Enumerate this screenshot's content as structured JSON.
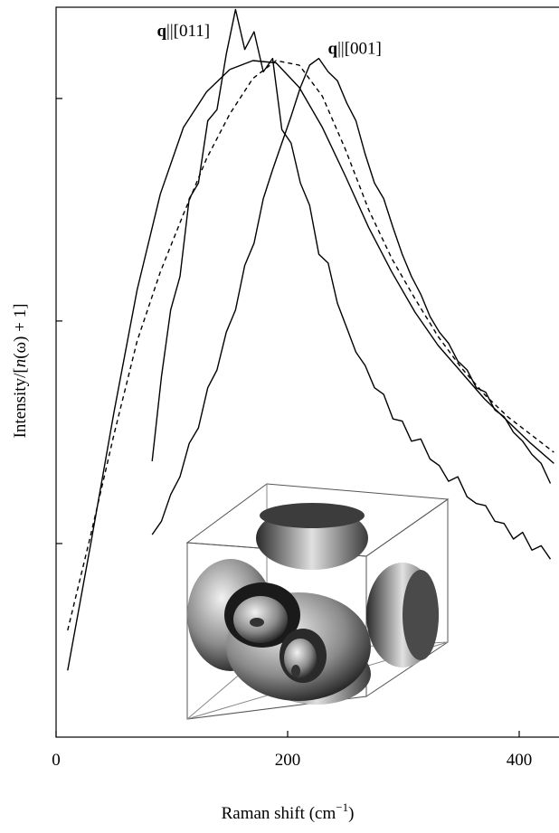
{
  "chart_data": {
    "type": "line",
    "x_label": {
      "text": "Raman shift  (cm",
      "sup": "−1",
      "tail": ")"
    },
    "y_label": {
      "text": "Intensity/[",
      "italic": "n",
      "tail": "(ω) + 1]"
    },
    "annotations": [
      {
        "bold": "q",
        "text": "||[011]",
        "x": 110,
        "y": 3.28
      },
      {
        "bold": "q",
        "text": "||[001]",
        "x": 258,
        "y": 3.2
      }
    ],
    "xlim": [
      0,
      434
    ],
    "ylim": [
      0.13,
      3.41
    ],
    "xticks": [
      0,
      200,
      400
    ],
    "yticks": [
      1,
      2,
      3
    ],
    "series": [
      {
        "color": "#000000",
        "dash": false,
        "x": [
          10,
          30,
          50,
          70,
          90,
          110,
          130,
          150,
          170,
          190,
          210,
          230,
          250,
          270,
          290,
          310,
          330,
          350,
          370,
          390,
          410,
          430
        ],
        "values": [
          0.43,
          1.0,
          1.59,
          2.14,
          2.57,
          2.87,
          3.03,
          3.13,
          3.17,
          3.16,
          3.05,
          2.87,
          2.65,
          2.42,
          2.22,
          2.04,
          1.89,
          1.77,
          1.65,
          1.55,
          1.45,
          1.36
        ]
      },
      {
        "color": "#000000",
        "dash": true,
        "x": [
          10,
          30,
          50,
          70,
          90,
          110,
          130,
          150,
          170,
          190,
          210,
          230,
          250,
          270,
          290,
          310,
          330,
          350,
          370,
          390,
          410,
          430
        ],
        "values": [
          0.61,
          1.04,
          1.49,
          1.91,
          2.22,
          2.48,
          2.73,
          2.93,
          3.09,
          3.17,
          3.15,
          3.01,
          2.77,
          2.5,
          2.28,
          2.1,
          1.93,
          1.79,
          1.67,
          1.57,
          1.49,
          1.41
        ]
      },
      {
        "color": "#000000",
        "dash": false,
        "x": [
          83,
          91,
          99,
          107,
          115,
          123,
          131,
          139,
          147,
          155,
          163,
          171,
          179,
          187,
          195,
          203,
          211,
          219,
          227,
          235,
          243,
          251,
          259,
          267,
          275,
          283,
          291,
          299,
          307,
          315,
          323,
          331,
          339,
          347,
          355,
          363,
          371,
          379,
          387,
          395,
          403,
          411,
          419,
          427
        ],
        "values": [
          1.37,
          1.75,
          2.05,
          2.2,
          2.55,
          2.62,
          2.9,
          2.95,
          3.2,
          3.4,
          3.22,
          3.3,
          3.12,
          3.18,
          2.86,
          2.8,
          2.62,
          2.52,
          2.3,
          2.26,
          2.08,
          1.97,
          1.86,
          1.8,
          1.7,
          1.67,
          1.56,
          1.55,
          1.46,
          1.47,
          1.38,
          1.35,
          1.28,
          1.3,
          1.21,
          1.18,
          1.17,
          1.1,
          1.09,
          1.02,
          1.05,
          0.97,
          0.99,
          0.93
        ]
      },
      {
        "color": "#000000",
        "dash": false,
        "x": [
          83,
          91,
          99,
          107,
          115,
          123,
          131,
          139,
          147,
          155,
          163,
          171,
          179,
          187,
          195,
          203,
          211,
          219,
          227,
          235,
          243,
          251,
          259,
          267,
          275,
          283,
          291,
          299,
          307,
          315,
          323,
          331,
          339,
          347,
          355,
          363,
          371,
          379,
          387,
          395,
          403,
          411,
          419,
          427
        ],
        "values": [
          1.04,
          1.1,
          1.22,
          1.3,
          1.45,
          1.52,
          1.7,
          1.78,
          1.95,
          2.05,
          2.25,
          2.35,
          2.55,
          2.68,
          2.8,
          2.92,
          3.05,
          3.15,
          3.18,
          3.12,
          3.08,
          2.98,
          2.9,
          2.75,
          2.62,
          2.55,
          2.42,
          2.3,
          2.2,
          2.12,
          2.02,
          1.95,
          1.9,
          1.82,
          1.78,
          1.7,
          1.68,
          1.6,
          1.57,
          1.5,
          1.46,
          1.4,
          1.36,
          1.27
        ]
      }
    ]
  }
}
